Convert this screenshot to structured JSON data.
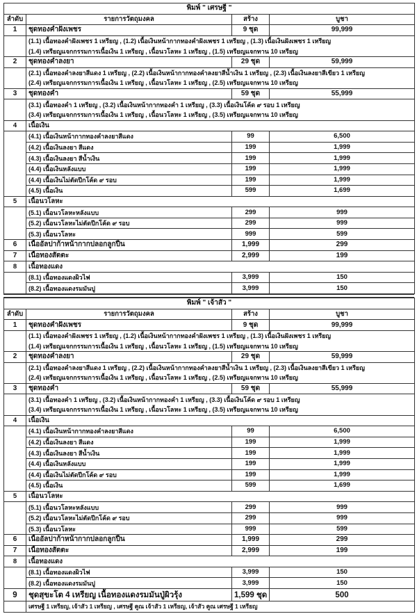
{
  "headers": {
    "no": "ลำดับ",
    "item": "รายการวัตถุมงคล",
    "qty": "สร้าง",
    "price": "บูชา"
  },
  "tables": [
    {
      "title": "พิมพ์ \" เศรษฐี \"",
      "rows": [
        {
          "type": "item",
          "no": "1",
          "name": "ชุดทองคำฝังเพชร",
          "qty": "9 ชุด",
          "price": "99,999"
        },
        {
          "type": "detail",
          "lines": [
            "(1.1) เนื้อทองคำฝังเพชร 1 เหรียญ , (1.2) เนื้อเงินหน้ากากทองคำฝังเพชร 1 เหรียญ , (1.3) เนื้อเงินฝังเพชร 1 เหรียญ",
            "(1.4) เหรียญแจกกรรมการเนื้อเงิน 1 เหรียญ , เนื้อนวโลหะ 1 เหรียญ , (1.5) เหรียญแจกทาน 10 เหรียญ"
          ]
        },
        {
          "type": "item",
          "no": "2",
          "name": "ชุดทองคำลงยา",
          "qty": "29 ชุด",
          "price": "59,999"
        },
        {
          "type": "detail",
          "lines": [
            "(2.1) เนื้อทองคำลงยาสีแดง 1 เหรียญ , (2.2) เนื้อเงินหน้ากากทองคำลงยาสีน้ำเงิน 1 เหรียญ , (2.3) เนื้อเงินลงยาสีเขียว 1 เหรียญ",
            "(2.4) เหรียญแจกกรรมการเนื้อเงิน 1 เหรียญ , เนื้อนวโลหะ 1 เหรียญ , (2.5) เหรียญแจกทาน 10 เหรียญ"
          ]
        },
        {
          "type": "item",
          "no": "3",
          "name": "ชุดทองคำ",
          "qty": "59 ชุด",
          "price": "55,999"
        },
        {
          "type": "detail",
          "lines": [
            "(3.1) เนื้อทองคำ 1 เหรียญ , (3.2) เนื้อเงินหน้ากากทองคำ 1 เหรียญ , (3.3) เนื้อเงินโค้ด ๙ รอบ 1 เหรียญ",
            "(3.4) เหรียญแจกกรรมการเนื้อเงิน 1 เหรียญ , เนื้อนวโลหะ 1 เหรียญ , (3.5) เหรียญแจกทาน 10 เหรียญ"
          ]
        },
        {
          "type": "cat",
          "no": "4",
          "name": "เนื้อเงิน"
        },
        {
          "type": "sub",
          "name": "(4.1) เนื้อเงินหน้ากากทองคำลงยาสีแดง",
          "qty": "99",
          "price": "6,500"
        },
        {
          "type": "sub",
          "name": "(4.2) เนื้อเงินลงยา สีแดง",
          "qty": "199",
          "price": "1,999"
        },
        {
          "type": "sub",
          "name": "(4.3) เนื้อเงินลงยา สีน้ำเงิน",
          "qty": "199",
          "price": "1,999"
        },
        {
          "type": "sub",
          "name": "(4.4) เนื้อเงินหลังแบบ",
          "qty": "199",
          "price": "1,999"
        },
        {
          "type": "sub",
          "name": "(4.4) เนื้อเงินไม่ตัดปีกโค้ด ๙ รอบ",
          "qty": "199",
          "price": "1,999"
        },
        {
          "type": "sub",
          "name": "(4.5) เนื้อเงิน",
          "qty": "599",
          "price": "1,699"
        },
        {
          "type": "cat",
          "no": "5",
          "name": "เนื้อนวโลหะ"
        },
        {
          "type": "sub",
          "name": "(5.1) เนื้อนวโลหะหลังแบบ",
          "qty": "299",
          "price": "999"
        },
        {
          "type": "sub",
          "name": "(5.2) เนื้อนวโลหะไม่ตัดปีกโค้ด ๙ รอบ",
          "qty": "299",
          "price": "999"
        },
        {
          "type": "sub",
          "name": "(5.3) เนื้อนวโลหะ",
          "qty": "999",
          "price": "599"
        },
        {
          "type": "item",
          "no": "6",
          "name": "เนื้ออัลปาก้าหน้ากากปลอกลูกปืน",
          "qty": "1,999",
          "price": "299"
        },
        {
          "type": "item",
          "no": "7",
          "name": "เนื้อทองสัตตะ",
          "qty": "2,999",
          "price": "199"
        },
        {
          "type": "cat",
          "no": "8",
          "name": "เนื้อทองแดง"
        },
        {
          "type": "sub",
          "name": "(8.1) เนื้อทองแดงผิวไฟ",
          "qty": "3,999",
          "price": "150"
        },
        {
          "type": "sub",
          "name": "(8.2) เนื้อทองแดงรมมันปู",
          "qty": "3,999",
          "price": "150"
        }
      ]
    },
    {
      "title": "พิมพ์ \" เจ้าสัว \"",
      "rows": [
        {
          "type": "item",
          "no": "1",
          "name": "ชุดทองคำฝังเพชร",
          "qty": "9 ชุด",
          "price": "99,999"
        },
        {
          "type": "detail",
          "lines": [
            "(1.1) เนื้อทองคำฝังเพชร 1 เหรียญ , (1.2) เนื้อเงินหน้ากากทองคำฝังเพชร 1 เหรียญ , (1.3) เนื้อเงินฝังเพชร 1 เหรียญ",
            "(1.4) เหรียญแจกกรรมการเนื้อเงิน 1 เหรียญ , เนื้อนวโลหะ 1 เหรียญ , (1.5) เหรียญแจกทาน 10 เหรียญ"
          ]
        },
        {
          "type": "item",
          "no": "2",
          "name": "ชุดทองคำลงยา",
          "qty": "29 ชุด",
          "price": "59,999"
        },
        {
          "type": "detail",
          "lines": [
            "(2.1) เนื้อทองคำลงยาสีแดง 1 เหรียญ , (2.2) เนื้อเงินหน้ากากทองคำลงยาสีน้ำเงิน 1 เหรียญ , (2.3) เนื้อเงินลงยาสีเขียว 1 เหรียญ",
            "(2.4) เหรียญแจกกรรมการเนื้อเงิน 1 เหรียญ , เนื้อนวโลหะ 1 เหรียญ , (2.5) เหรียญแจกทาน 10 เหรียญ"
          ]
        },
        {
          "type": "item",
          "no": "3",
          "name": "ชุดทองคำ",
          "qty": "59 ชุด",
          "price": "55,999"
        },
        {
          "type": "detail",
          "lines": [
            "(3.1) เนื้อทองคำ 1 เหรียญ , (3.2) เนื้อเงินหน้ากากทองคำ 1 เหรียญ , (3.3) เนื้อเงินโค้ด ๙ รอบ 1 เหรียญ",
            "(3.4) เหรียญแจกกรรมการเนื้อเงิน 1 เหรียญ , เนื้อนวโลหะ 1 เหรียญ , (3.5) เหรียญแจกทาน 10 เหรียญ"
          ]
        },
        {
          "type": "cat",
          "no": "4",
          "name": "เนื้อเงิน"
        },
        {
          "type": "sub",
          "name": "(4.1) เนื้อเงินหน้ากากทองคำลงยาสีแดง",
          "qty": "99",
          "price": "6,500"
        },
        {
          "type": "sub",
          "name": "(4.2) เนื้อเงินลงยา สีแดง",
          "qty": "199",
          "price": "1,999"
        },
        {
          "type": "sub",
          "name": "(4.3) เนื้อเงินลงยา สีน้ำเงิน",
          "qty": "199",
          "price": "1,999"
        },
        {
          "type": "sub",
          "name": "(4.4) เนื้อเงินหลังแบบ",
          "qty": "199",
          "price": "1,999"
        },
        {
          "type": "sub",
          "name": "(4.4) เนื้อเงินไม่ตัดปีกโค้ด ๙ รอบ",
          "qty": "199",
          "price": "1,999"
        },
        {
          "type": "sub",
          "name": "(4.5) เนื้อเงิน",
          "qty": "599",
          "price": "1,699"
        },
        {
          "type": "cat",
          "no": "5",
          "name": "เนื้อนวโลหะ"
        },
        {
          "type": "sub",
          "name": "(5.1) เนื้อนวโลหะหลังแบบ",
          "qty": "299",
          "price": "999"
        },
        {
          "type": "sub",
          "name": "(5.2) เนื้อนวโลหะไม่ตัดปีกโค้ด ๙ รอบ",
          "qty": "299",
          "price": "999"
        },
        {
          "type": "sub",
          "name": "(5.3) เนื้อนวโลหะ",
          "qty": "999",
          "price": "599"
        },
        {
          "type": "item",
          "no": "6",
          "name": "เนื้ออัลปาก้าหน้ากากปลอกลูกปืน",
          "qty": "1,999",
          "price": "299"
        },
        {
          "type": "item",
          "no": "7",
          "name": "เนื้อทองสัตตะ",
          "qty": "2,999",
          "price": "199"
        },
        {
          "type": "cat",
          "no": "8",
          "name": "เนื้อทองแดง"
        },
        {
          "type": "sub",
          "name": "(8.1) เนื้อทองแดงผิวไฟ",
          "qty": "3,999",
          "price": "150"
        },
        {
          "type": "sub",
          "name": "(8.2) เนื้อทองแดงรมมันปู",
          "qty": "3,999",
          "price": "150"
        },
        {
          "type": "big",
          "no": "9",
          "name": "ชุดสุขะโต  4  เหรียญ  เนื้อทองแดงรมมันปู่ผิวรุ้ง",
          "qty": "1,599 ชุด",
          "price": "500"
        },
        {
          "type": "foot",
          "text": "เศรษฐี 1 เหรียญ, เจ้าสัว 1 เหรียญ , เศรษฐี คูณ เจ้าสัว 1 เหรียญ, เจ้าสัว คูณ เศรษฐี 1 เหรียญ"
        }
      ]
    }
  ]
}
